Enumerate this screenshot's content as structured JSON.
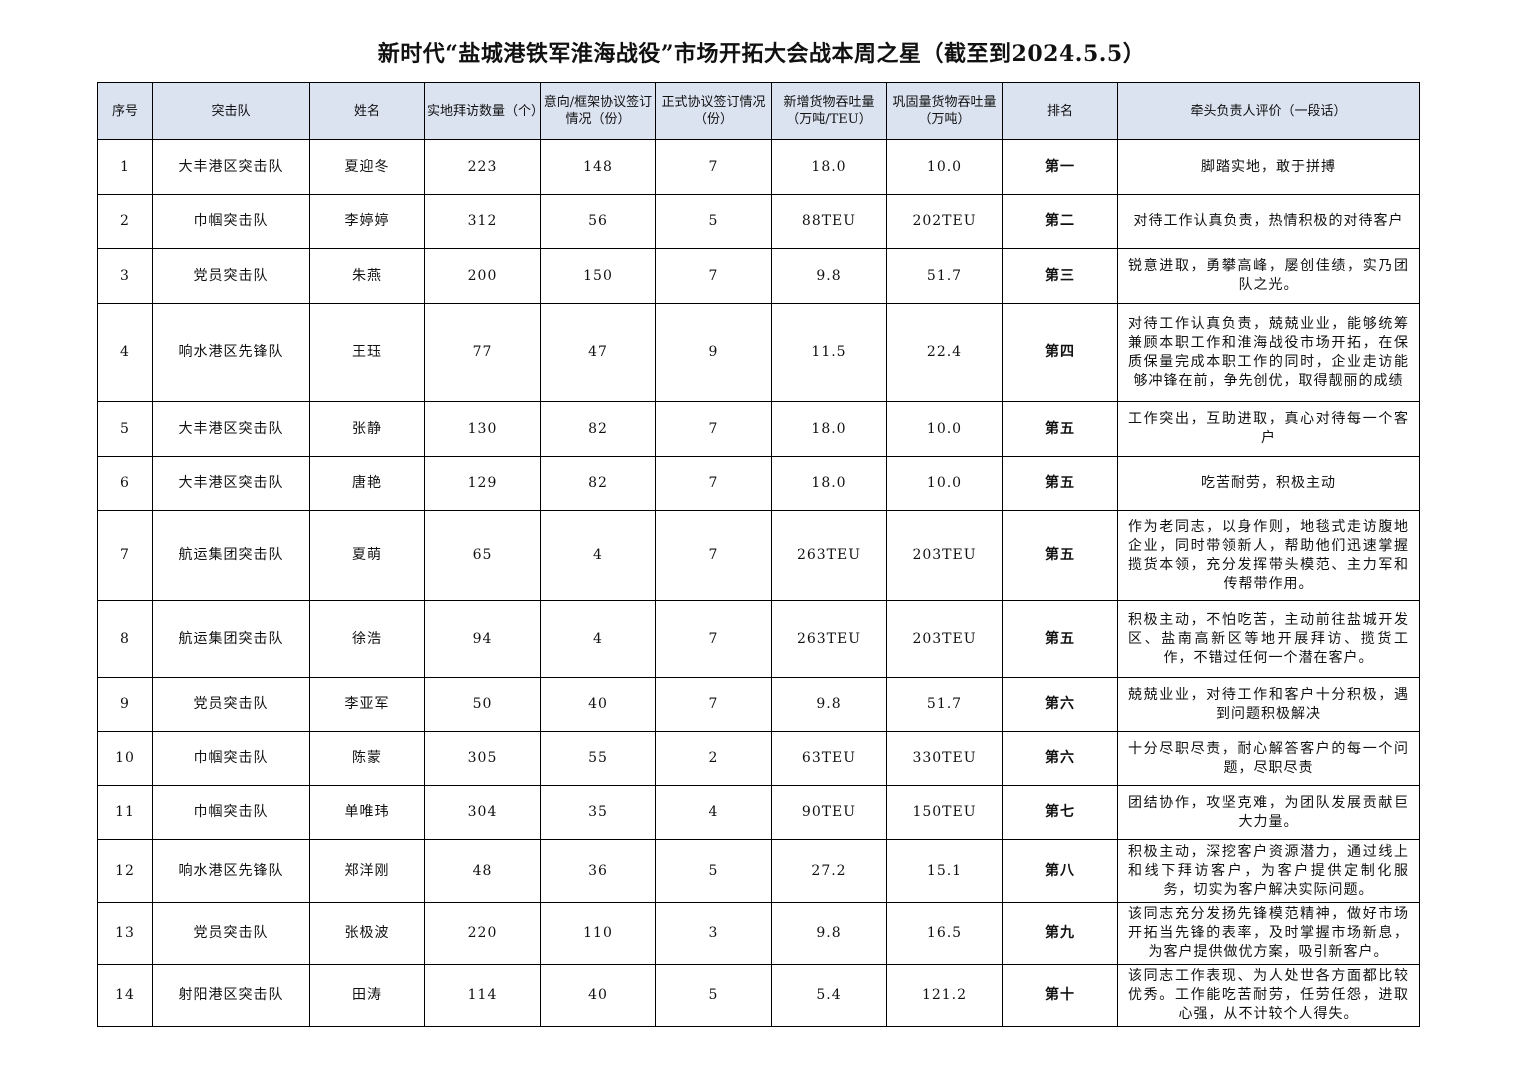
{
  "title": "新时代“盐城港铁军淮海战役”市场开拓大会战本周之星（截至到2024.5.5）",
  "table": {
    "header": [
      "序号",
      "突击队",
      "姓名",
      "实地拜访数量（个）",
      "意向/框架协议签订情况（份）",
      "正式协议签订情况（份）",
      "新增货物吞吐量（万吨/TEU）",
      "巩固量货物吞吐量（万吨）",
      "排名",
      "牵头负责人评价（一段话）"
    ],
    "rows": [
      [
        "1",
        "大丰港区突击队",
        "夏迎冬",
        "223",
        "148",
        "7",
        "18.0",
        "10.0",
        "第一",
        "脚踏实地，敢于拼搏"
      ],
      [
        "2",
        "巾帼突击队",
        "李婷婷",
        "312",
        "56",
        "5",
        "88TEU",
        "202TEU",
        "第二",
        "对待工作认真负责，热情积极的对待客户"
      ],
      [
        "3",
        "党员突击队",
        "朱燕",
        "200",
        "150",
        "7",
        "9.8",
        "51.7",
        "第三",
        "锐意进取，勇攀高峰，屡创佳绩，实乃团队之光。"
      ],
      [
        "4",
        "响水港区先锋队",
        "王珏",
        "77",
        "47",
        "9",
        "11.5",
        "22.4",
        "第四",
        "对待工作认真负责，兢兢业业，能够统筹兼顾本职工作和淮海战役市场开拓，在保质保量完成本职工作的同时，企业走访能够冲锋在前，争先创优，取得靓丽的成绩"
      ],
      [
        "5",
        "大丰港区突击队",
        "张静",
        "130",
        "82",
        "7",
        "18.0",
        "10.0",
        "第五",
        "工作突出，互助进取，真心对待每一个客户"
      ],
      [
        "6",
        "大丰港区突击队",
        "唐艳",
        "129",
        "82",
        "7",
        "18.0",
        "10.0",
        "第五",
        "吃苦耐劳，积极主动"
      ],
      [
        "7",
        "航运集团突击队",
        "夏萌",
        "65",
        "4",
        "7",
        "263TEU",
        "203TEU",
        "第五",
        "作为老同志，以身作则，地毯式走访腹地企业，同时带领新人，帮助他们迅速掌握揽货本领，充分发挥带头模范、主力军和传帮带作用。"
      ],
      [
        "8",
        "航运集团突击队",
        "徐浩",
        "94",
        "4",
        "7",
        "263TEU",
        "203TEU",
        "第五",
        "积极主动，不怕吃苦，主动前往盐城开发区、盐南高新区等地开展拜访、揽货工作，不错过任何一个潜在客户。"
      ],
      [
        "9",
        "党员突击队",
        "李亚军",
        "50",
        "40",
        "7",
        "9.8",
        "51.7",
        "第六",
        "兢兢业业，对待工作和客户十分积极，遇到问题积极解决"
      ],
      [
        "10",
        "巾帼突击队",
        "陈蒙",
        "305",
        "55",
        "2",
        "63TEU",
        "330TEU",
        "第六",
        "十分尽职尽责，耐心解答客户的每一个问题，尽职尽责"
      ],
      [
        "11",
        "巾帼突击队",
        "单唯玮",
        "304",
        "35",
        "4",
        "90TEU",
        "150TEU",
        "第七",
        "团结协作，攻坚克难，为团队发展贡献巨大力量。"
      ],
      [
        "12",
        "响水港区先锋队",
        "郑洋刚",
        "48",
        "36",
        "5",
        "27.2",
        "15.1",
        "第八",
        "积极主动，深挖客户资源潜力，通过线上和线下拜访客户，为客户提供定制化服务，切实为客户解决实际问题。"
      ],
      [
        "13",
        "党员突击队",
        "张极波",
        "220",
        "110",
        "3",
        "9.8",
        "16.5",
        "第九",
        "该同志充分发扬先锋模范精神，做好市场开拓当先锋的表率，及时掌握市场新息，为客户提供做优方案，吸引新客户。"
      ],
      [
        "14",
        "射阳港区突击队",
        "田涛",
        "114",
        "40",
        "5",
        "5.4",
        "121.2",
        "第十",
        "该同志工作表现、为人处世各方面都比较优秀。工作能吃苦耐劳，任劳任怨，进取心强，从不计较个人得失。"
      ]
    ]
  }
}
